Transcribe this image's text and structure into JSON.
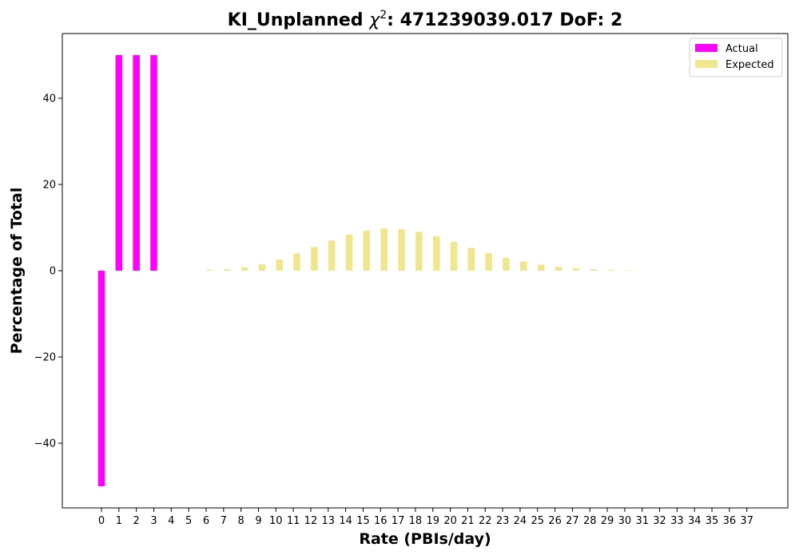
{
  "chart_data": {
    "type": "bar",
    "title_prefix": "KI_Unplanned ",
    "title_symbol": "χ",
    "title_superscript": "2",
    "title_suffix": ": 471239039.017 DoF: 2",
    "xlabel": "Rate (PBIs/day)",
    "ylabel": "Percentage of Total",
    "ylim": [
      -55,
      55
    ],
    "yticks": [
      -40,
      -20,
      0,
      20,
      40
    ],
    "categories": [
      "0",
      "1",
      "2",
      "3",
      "4",
      "5",
      "6",
      "7",
      "8",
      "9",
      "10",
      "11",
      "12",
      "13",
      "14",
      "15",
      "16",
      "17",
      "18",
      "19",
      "20",
      "21",
      "22",
      "23",
      "24",
      "25",
      "26",
      "27",
      "28",
      "29",
      "30",
      "31",
      "32",
      "33",
      "34",
      "35",
      "36",
      "37"
    ],
    "legend_position": "top-right",
    "grid": false,
    "series": [
      {
        "name": "Actual",
        "color": "#ff00ff",
        "values": [
          -50,
          50,
          50,
          50,
          0,
          0,
          0,
          0,
          0,
          0,
          0,
          0,
          0,
          0,
          0,
          0,
          0,
          0,
          0,
          0,
          0,
          0,
          0,
          0,
          0,
          0,
          0,
          0,
          0,
          0,
          0,
          0,
          0,
          0,
          0,
          0,
          0,
          0
        ]
      },
      {
        "name": "Expected",
        "color": "#f0e68c",
        "values": [
          0,
          0,
          0,
          0,
          0,
          0,
          0.2,
          0.4,
          0.8,
          1.5,
          2.6,
          4.0,
          5.5,
          7.0,
          8.4,
          9.3,
          9.8,
          9.6,
          9.0,
          8.0,
          6.7,
          5.3,
          4.1,
          3.0,
          2.1,
          1.4,
          0.9,
          0.6,
          0.35,
          0.2,
          0.1,
          0,
          0,
          0,
          0,
          0,
          0,
          0
        ]
      }
    ]
  }
}
